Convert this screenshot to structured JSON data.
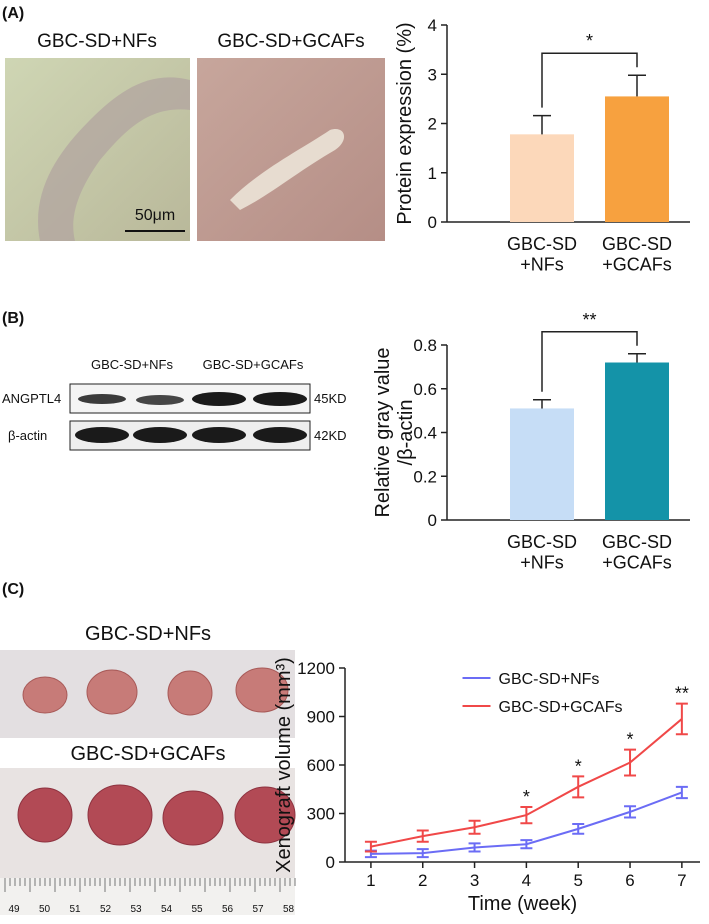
{
  "panel_labels": [
    "(A)",
    "(B)",
    "(C)"
  ],
  "histology": {
    "labels": [
      "GBC-SD+NFs",
      "GBC-SD+GCAFs"
    ],
    "scale_bar": "50μm"
  },
  "western_blot": {
    "groups": [
      "GBC-SD+NFs",
      "GBC-SD+GCAFs"
    ],
    "rows": [
      "ANGPTL4",
      "β-actin"
    ],
    "sizes": [
      "45KD",
      "42KD"
    ]
  },
  "xenograft_photo": {
    "labels": [
      "GBC-SD+NFs",
      "GBC-SD+GCAFs"
    ],
    "ruler": [
      "49",
      "50",
      "51",
      "52",
      "53",
      "54",
      "55",
      "56",
      "57",
      "58"
    ]
  },
  "chart_data": [
    {
      "type": "bar",
      "ylabel": "Protein expression (%)",
      "categories": [
        "GBC-SD\n+NFs",
        "GBC-SD\n+GCAFs"
      ],
      "values": [
        1.78,
        2.55
      ],
      "errors": [
        0.38,
        0.43
      ],
      "colors": [
        "#fcd8ba",
        "#f7a13f"
      ],
      "ylim": [
        0,
        4
      ],
      "yticks": [
        0,
        1,
        2,
        3,
        4
      ],
      "significance": "*"
    },
    {
      "type": "bar",
      "ylabel": "Relative gray value\n/β-actin",
      "categories": [
        "GBC-SD\n+NFs",
        "GBC-SD\n+GCAFs"
      ],
      "values": [
        0.51,
        0.72
      ],
      "errors": [
        0.04,
        0.04
      ],
      "colors": [
        "#c6ddf6",
        "#1493a8"
      ],
      "ylim": [
        0,
        0.8
      ],
      "yticks": [
        0,
        0.2,
        0.4,
        0.6,
        0.8
      ],
      "significance": "**"
    },
    {
      "type": "line",
      "xlabel": "Time (week)",
      "ylabel": "Xenograft volume (mm³)",
      "x": [
        1,
        2,
        3,
        4,
        5,
        6,
        7
      ],
      "xlim": [
        0.5,
        7.35
      ],
      "xticks": [
        1,
        2,
        3,
        4,
        5,
        6,
        7
      ],
      "ylim": [
        0,
        1200
      ],
      "yticks": [
        0,
        300,
        600,
        900,
        1200
      ],
      "legend": "upper center",
      "series": [
        {
          "name": "GBC-SD+NFs",
          "color": "#6b6cf5",
          "values": [
            50,
            55,
            90,
            110,
            205,
            310,
            430
          ],
          "errors": [
            20,
            25,
            25,
            25,
            30,
            35,
            35
          ]
        },
        {
          "name": "GBC-SD+GCAFs",
          "color": "#f04848",
          "values": [
            95,
            160,
            215,
            290,
            465,
            615,
            885
          ],
          "errors": [
            30,
            35,
            40,
            50,
            65,
            80,
            95
          ]
        }
      ],
      "annotations": [
        {
          "x": 4,
          "text": "*"
        },
        {
          "x": 5,
          "text": "*"
        },
        {
          "x": 6,
          "text": "*"
        },
        {
          "x": 7,
          "text": "**"
        }
      ]
    }
  ]
}
